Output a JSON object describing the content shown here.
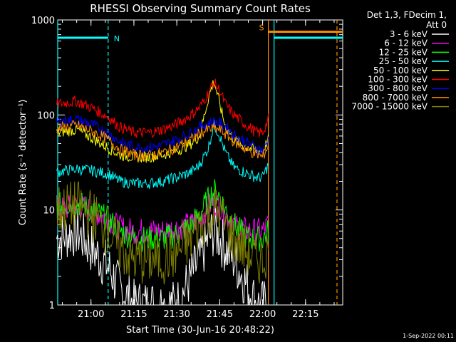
{
  "chart_data": {
    "type": "line",
    "title": "RHESSI Observing Summary Count Rates",
    "xlabel": "Start Time (30-Jun-16 20:48:22)",
    "ylabel": "Count Rate (s⁻¹ detector⁻¹)",
    "x_ticks": [
      "21:00",
      "21:15",
      "21:30",
      "21:45",
      "22:00",
      "22:15"
    ],
    "y_ticks": [
      "1",
      "10",
      "100",
      "1000"
    ],
    "y_scale": "log",
    "ylim": [
      1,
      1000
    ],
    "xlim": [
      "20:48:22",
      "22:28"
    ],
    "grid": false,
    "legend_position": "right",
    "legend_header": [
      "Det 1,3, FDecim 1,",
      "Att 0"
    ],
    "footer": "1-Sep-2022 00:11",
    "markers": [
      {
        "label": "N",
        "color": "#00ffff",
        "start": "20:48:22",
        "end": "21:06",
        "level": 650
      },
      {
        "label": "S",
        "color": "#ff8c00",
        "start": "22:02",
        "end": "22:28",
        "level": 750
      }
    ],
    "extra_segment": {
      "color": "#00ffff",
      "start": "22:04",
      "end": "22:28",
      "level": 650
    },
    "vlines": [
      {
        "time": "20:48:22",
        "color": "#00ffff",
        "style": "solid"
      },
      {
        "time": "21:06",
        "color": "#00ffff",
        "style": "dashed"
      },
      {
        "time": "22:02",
        "color": "#ff8c00",
        "style": "solid"
      },
      {
        "time": "22:04",
        "color": "#00ffff",
        "style": "solid"
      },
      {
        "time": "22:26",
        "color": "#ff8c00",
        "style": "dashed"
      }
    ],
    "x": [
      "20:48",
      "20:55",
      "21:00",
      "21:06",
      "21:10",
      "21:15",
      "21:20",
      "21:25",
      "21:30",
      "21:35",
      "21:38",
      "21:41",
      "21:43",
      "21:45",
      "21:47",
      "21:50",
      "21:55",
      "21:58",
      "22:00",
      "22:02"
    ],
    "series": [
      {
        "name": "3 - 6 keV",
        "color": "#ffffff",
        "values": [
          5,
          6,
          4,
          2.5,
          1.5,
          1,
          1,
          1,
          1,
          2,
          3,
          5,
          6,
          5,
          4,
          3,
          1.5,
          1,
          1,
          1
        ]
      },
      {
        "name": "6 - 12 keV",
        "color": "#ff00ff",
        "values": [
          10,
          11,
          10,
          8,
          6.5,
          6,
          6,
          6,
          6.5,
          7,
          8,
          11,
          12,
          11,
          9,
          7,
          6,
          6,
          6,
          7
        ]
      },
      {
        "name": "12 - 25 keV",
        "color": "#00ff00",
        "values": [
          11,
          12,
          10,
          8,
          6,
          5,
          5,
          5,
          5.5,
          7,
          9,
          13,
          16,
          14,
          10,
          7,
          5,
          5,
          5,
          6
        ]
      },
      {
        "name": "25 - 50 keV",
        "color": "#00ffff",
        "values": [
          25,
          27,
          26,
          24,
          20,
          19,
          19,
          20,
          22,
          25,
          30,
          45,
          80,
          60,
          40,
          28,
          24,
          22,
          22,
          30
        ]
      },
      {
        "name": "50 - 100 keV",
        "color": "#ffff00",
        "values": [
          65,
          70,
          58,
          45,
          38,
          36,
          36,
          38,
          42,
          50,
          60,
          150,
          230,
          130,
          75,
          55,
          45,
          42,
          42,
          55
        ]
      },
      {
        "name": "100 - 300 keV",
        "color": "#ff0000",
        "values": [
          130,
          140,
          120,
          95,
          75,
          65,
          65,
          70,
          80,
          100,
          120,
          170,
          220,
          180,
          130,
          100,
          75,
          65,
          65,
          90
        ]
      },
      {
        "name": "300 - 800 keV",
        "color": "#0000ff",
        "values": [
          85,
          90,
          80,
          65,
          52,
          46,
          45,
          48,
          55,
          65,
          75,
          82,
          85,
          82,
          75,
          62,
          50,
          45,
          42,
          55
        ]
      },
      {
        "name": "800 - 7000 keV",
        "color": "#ff8c00",
        "values": [
          72,
          78,
          68,
          55,
          44,
          38,
          37,
          40,
          46,
          55,
          64,
          70,
          72,
          70,
          63,
          52,
          42,
          38,
          36,
          48
        ]
      },
      {
        "name": "7000 - 15000 keV",
        "color": "#808000",
        "values": [
          10,
          11,
          9,
          6,
          4,
          3,
          3,
          3,
          3.5,
          5,
          7,
          9,
          10,
          9,
          7,
          5,
          3.5,
          3,
          3,
          4
        ]
      }
    ]
  }
}
